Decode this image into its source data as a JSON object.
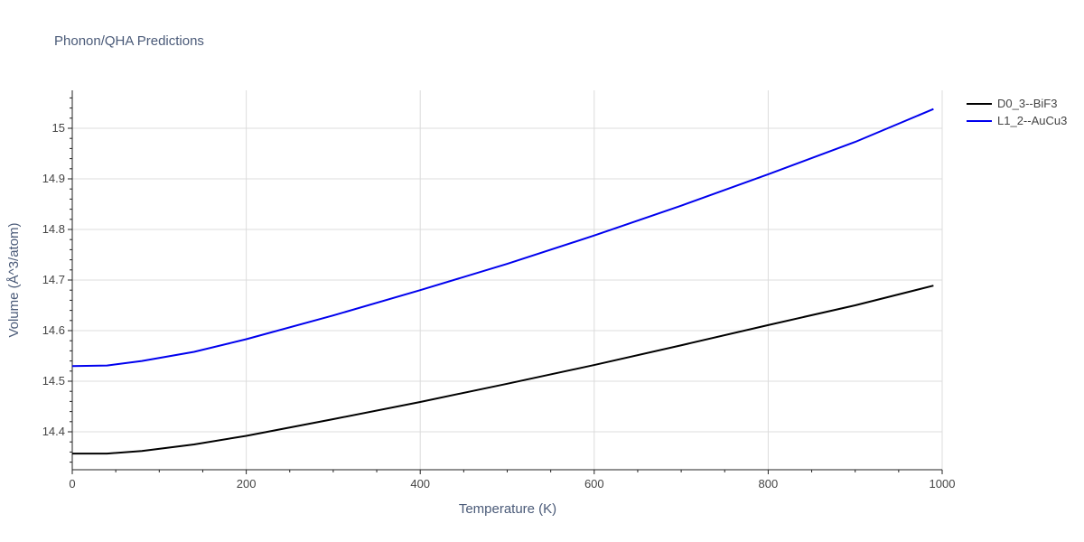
{
  "chart_data": {
    "type": "line",
    "title": "Phonon/QHA Predictions",
    "xlabel": "Temperature (K)",
    "ylabel": "Volume (Å^3/atom)",
    "xlim": [
      0,
      1000
    ],
    "ylim": [
      14.325,
      15.075
    ],
    "x_ticks": [
      0,
      200,
      400,
      600,
      800,
      1000
    ],
    "y_ticks": [
      14.4,
      14.5,
      14.6,
      14.7,
      14.8,
      14.9,
      15
    ],
    "grid": true,
    "legend_position": "top-right",
    "series": [
      {
        "name": "D0_3--BiF3",
        "color": "#000000",
        "x": [
          0,
          40,
          80,
          140,
          200,
          300,
          400,
          500,
          600,
          700,
          800,
          900,
          990
        ],
        "y": [
          14.357,
          14.357,
          14.362,
          14.375,
          14.392,
          14.425,
          14.459,
          14.495,
          14.532,
          14.571,
          14.611,
          14.65,
          14.689
        ]
      },
      {
        "name": "L1_2--AuCu3",
        "color": "#0000ee",
        "x": [
          0,
          40,
          80,
          140,
          200,
          300,
          400,
          500,
          600,
          700,
          800,
          900,
          990
        ],
        "y": [
          14.53,
          14.531,
          14.54,
          14.558,
          14.583,
          14.63,
          14.68,
          14.732,
          14.788,
          14.847,
          14.909,
          14.973,
          15.038
        ]
      }
    ]
  }
}
